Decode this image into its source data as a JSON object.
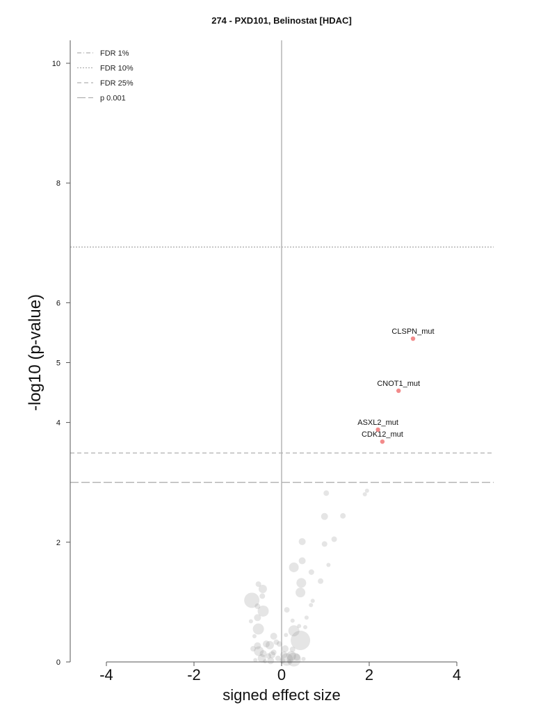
{
  "chart_data": {
    "type": "scatter",
    "title": "274 - PXD101, Belinostat [HDAC]",
    "xlabel": "signed effect size",
    "ylabel": "-log10 (p-value)",
    "xlim": [
      -4.8,
      4.8
    ],
    "ylim": [
      0,
      10.4
    ],
    "x_ticks": [
      -4,
      -2,
      0,
      2,
      4
    ],
    "x_tick_labels": [
      "-4",
      "-2",
      "0",
      "2",
      "4"
    ],
    "y_ticks": [
      0,
      2,
      4,
      5,
      6,
      8,
      10
    ],
    "y_tick_labels": [
      "0",
      "2",
      "4",
      "5",
      "6",
      "8",
      "10"
    ],
    "grid": false,
    "legend_position": "top-left",
    "legend": [
      {
        "label": "FDR 1%",
        "style": "dash-dot"
      },
      {
        "label": "FDR 10%",
        "style": "dotted"
      },
      {
        "label": "FDR 25%",
        "style": "dashed"
      },
      {
        "label": "p 0.001",
        "style": "long-dash"
      }
    ],
    "thresholds": [
      {
        "label": "FDR 10%",
        "y": 6.93,
        "style": "dotted"
      },
      {
        "label": "FDR 25%",
        "y": 3.49,
        "style": "dashed"
      },
      {
        "label": "p 0.001",
        "y": 3.0,
        "style": "long-dash"
      }
    ],
    "highlighted_points": [
      {
        "label": "CLSPN_mut",
        "x": 3.0,
        "y": 5.4
      },
      {
        "label": "CNOT1_mut",
        "x": 2.67,
        "y": 4.53
      },
      {
        "label": "ASXL2_mut",
        "x": 2.2,
        "y": 3.88
      },
      {
        "label": "CDK12_mut",
        "x": 2.3,
        "y": 3.68
      }
    ],
    "background_points": [
      {
        "x": 1.02,
        "y": 2.82,
        "size": 4
      },
      {
        "x": 1.95,
        "y": 2.86,
        "size": 3
      },
      {
        "x": 1.9,
        "y": 2.8,
        "size": 3
      },
      {
        "x": 0.98,
        "y": 2.43,
        "size": 5
      },
      {
        "x": 1.4,
        "y": 2.44,
        "size": 4
      },
      {
        "x": 0.47,
        "y": 2.01,
        "size": 5
      },
      {
        "x": 0.98,
        "y": 1.97,
        "size": 4
      },
      {
        "x": 1.2,
        "y": 2.05,
        "size": 4
      },
      {
        "x": 0.47,
        "y": 1.69,
        "size": 5
      },
      {
        "x": 0.28,
        "y": 1.58,
        "size": 7
      },
      {
        "x": 1.07,
        "y": 1.62,
        "size": 3
      },
      {
        "x": 0.68,
        "y": 1.5,
        "size": 4
      },
      {
        "x": 0.45,
        "y": 1.32,
        "size": 7
      },
      {
        "x": 0.89,
        "y": 1.35,
        "size": 4
      },
      {
        "x": -0.53,
        "y": 1.3,
        "size": 4
      },
      {
        "x": -0.43,
        "y": 1.22,
        "size": 6
      },
      {
        "x": 0.43,
        "y": 1.16,
        "size": 7
      },
      {
        "x": -0.44,
        "y": 1.1,
        "size": 4
      },
      {
        "x": -0.68,
        "y": 1.03,
        "size": 11
      },
      {
        "x": -0.55,
        "y": 0.93,
        "size": 4
      },
      {
        "x": 0.71,
        "y": 1.02,
        "size": 3
      },
      {
        "x": 0.67,
        "y": 0.95,
        "size": 3
      },
      {
        "x": -0.42,
        "y": 0.85,
        "size": 8
      },
      {
        "x": 0.12,
        "y": 0.87,
        "size": 4
      },
      {
        "x": -0.55,
        "y": 0.74,
        "size": 5
      },
      {
        "x": 0.57,
        "y": 0.74,
        "size": 3
      },
      {
        "x": 0.25,
        "y": 0.69,
        "size": 3
      },
      {
        "x": -0.7,
        "y": 0.68,
        "size": 3
      },
      {
        "x": 0.4,
        "y": 0.6,
        "size": 3
      },
      {
        "x": -0.53,
        "y": 0.55,
        "size": 8
      },
      {
        "x": 0.54,
        "y": 0.58,
        "size": 3
      },
      {
        "x": 0.28,
        "y": 0.52,
        "size": 8
      },
      {
        "x": -0.18,
        "y": 0.43,
        "size": 5
      },
      {
        "x": 0.1,
        "y": 0.45,
        "size": 3
      },
      {
        "x": -0.62,
        "y": 0.43,
        "size": 3
      },
      {
        "x": 0.43,
        "y": 0.36,
        "size": 14
      },
      {
        "x": -0.12,
        "y": 0.33,
        "size": 4
      },
      {
        "x": -0.35,
        "y": 0.3,
        "size": 5
      },
      {
        "x": -0.27,
        "y": 0.28,
        "size": 6
      },
      {
        "x": -0.05,
        "y": 0.3,
        "size": 4
      },
      {
        "x": -0.55,
        "y": 0.27,
        "size": 5
      },
      {
        "x": -0.65,
        "y": 0.22,
        "size": 4
      },
      {
        "x": 0.08,
        "y": 0.22,
        "size": 5
      },
      {
        "x": 0.25,
        "y": 0.21,
        "size": 4
      },
      {
        "x": -0.52,
        "y": 0.18,
        "size": 7
      },
      {
        "x": -0.42,
        "y": 0.14,
        "size": 5
      },
      {
        "x": -0.18,
        "y": 0.16,
        "size": 4
      },
      {
        "x": -0.22,
        "y": 0.12,
        "size": 5
      },
      {
        "x": 0.05,
        "y": 0.12,
        "size": 5
      },
      {
        "x": 0.22,
        "y": 0.1,
        "size": 7
      },
      {
        "x": -0.3,
        "y": 0.1,
        "size": 4
      },
      {
        "x": 0.35,
        "y": 0.08,
        "size": 5
      },
      {
        "x": -0.45,
        "y": 0.06,
        "size": 6
      },
      {
        "x": 0.12,
        "y": 0.04,
        "size": 9
      },
      {
        "x": -0.08,
        "y": 0.06,
        "size": 4
      },
      {
        "x": 0.28,
        "y": 0.04,
        "size": 10
      },
      {
        "x": -0.6,
        "y": 0.03,
        "size": 3
      },
      {
        "x": 0.5,
        "y": 0.05,
        "size": 3
      },
      {
        "x": -0.25,
        "y": 0.02,
        "size": 5
      },
      {
        "x": 0.02,
        "y": 0.02,
        "size": 4
      },
      {
        "x": 0.18,
        "y": 0.01,
        "size": 3
      },
      {
        "x": -0.38,
        "y": 0.01,
        "size": 3
      }
    ],
    "colors": {
      "highlight": "#f28b8b",
      "background_point": "#8a8a8a",
      "axis": "#555555",
      "zero_line": "#c8c8c8",
      "threshold": "#b0b0b0"
    }
  }
}
